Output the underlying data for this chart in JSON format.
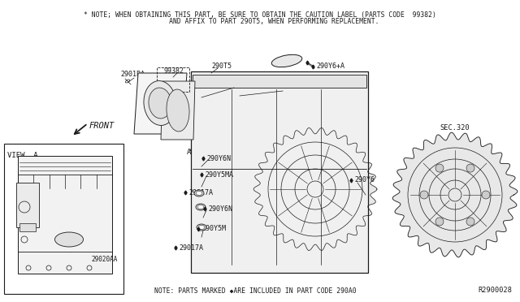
{
  "bg_color": "#ffffff",
  "title_note_line1": "* NOTE; WHEN OBTAINING THIS PART, BE SURE TO OBTAIN THE CAUTION LABEL (PARTS CODE  99382)",
  "title_note_line2": "       AND AFFIX TO PART 290T5, WHEN PERFORMING REPLACEMENT.",
  "diagram_id": "R2900028",
  "bottom_note": "NOTE: PARTS MARKED ◆ARE INCLUDED IN PART CODE 290A0",
  "sec_label": "SEC.320",
  "view_label": "VIEW  A",
  "front_label": "FRONT",
  "col": "#1a1a1a",
  "font_family": "DejaVu Sans Mono",
  "note_fontsize": 5.8,
  "label_fontsize": 6.2,
  "small_fontsize": 5.5
}
